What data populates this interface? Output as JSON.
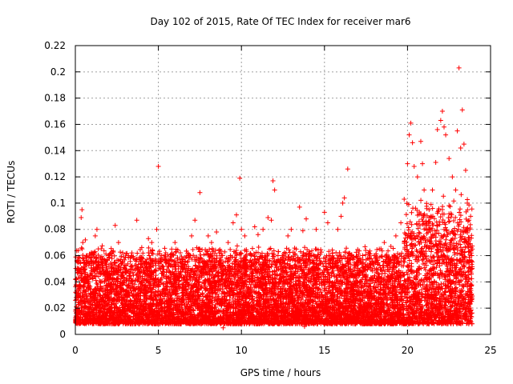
{
  "chart_data": {
    "type": "scatter",
    "title": "Day 102 of 2015, Rate Of TEC Index for receiver mar6",
    "xlabel": "GPS time / hours",
    "ylabel": "ROTI / TECUs",
    "xlim": [
      0,
      25
    ],
    "ylim": [
      0,
      0.22
    ],
    "xticks": [
      0,
      5,
      10,
      15,
      20,
      25
    ],
    "xtick_labels": [
      "0",
      "5",
      "10",
      "15",
      "20",
      "25"
    ],
    "yticks": [
      0,
      0.02,
      0.04,
      0.06,
      0.08,
      0.1,
      0.12,
      0.14,
      0.16,
      0.18,
      0.2,
      0.22
    ],
    "ytick_labels": [
      "0",
      "0.02",
      "0.04",
      "0.06",
      "0.08",
      "0.1",
      "0.12",
      "0.14",
      "0.16",
      "0.18",
      "0.2",
      "0.22"
    ],
    "grid": true,
    "marker": "+",
    "color": "#ff0000",
    "series": [
      {
        "name": "ROTI",
        "points": [
          [
            0.1,
            0.012
          ],
          [
            0.2,
            0.03
          ],
          [
            0.3,
            0.055
          ],
          [
            0.35,
            0.089
          ],
          [
            0.4,
            0.095
          ],
          [
            0.45,
            0.07
          ],
          [
            0.5,
            0.04
          ],
          [
            0.6,
            0.072
          ],
          [
            0.7,
            0.06
          ],
          [
            0.8,
            0.035
          ],
          [
            1.0,
            0.045
          ],
          [
            1.2,
            0.075
          ],
          [
            1.3,
            0.08
          ],
          [
            1.5,
            0.05
          ],
          [
            1.7,
            0.025
          ],
          [
            2.0,
            0.06
          ],
          [
            2.2,
            0.04
          ],
          [
            2.4,
            0.083
          ],
          [
            2.6,
            0.07
          ],
          [
            2.8,
            0.03
          ],
          [
            3.0,
            0.05
          ],
          [
            3.2,
            0.06
          ],
          [
            3.5,
            0.045
          ],
          [
            3.7,
            0.087
          ],
          [
            3.9,
            0.035
          ],
          [
            4.2,
            0.055
          ],
          [
            4.4,
            0.073
          ],
          [
            4.6,
            0.07
          ],
          [
            4.9,
            0.08
          ],
          [
            5.0,
            0.128
          ],
          [
            5.2,
            0.06
          ],
          [
            5.5,
            0.04
          ],
          [
            5.8,
            0.065
          ],
          [
            6.0,
            0.07
          ],
          [
            6.2,
            0.05
          ],
          [
            6.5,
            0.03
          ],
          [
            6.8,
            0.06
          ],
          [
            7.0,
            0.075
          ],
          [
            7.2,
            0.087
          ],
          [
            7.5,
            0.108
          ],
          [
            7.7,
            0.05
          ],
          [
            8.0,
            0.075
          ],
          [
            8.2,
            0.07
          ],
          [
            8.5,
            0.078
          ],
          [
            8.8,
            0.06
          ],
          [
            9.0,
            0.04
          ],
          [
            9.2,
            0.07
          ],
          [
            9.5,
            0.085
          ],
          [
            9.7,
            0.091
          ],
          [
            9.9,
            0.119
          ],
          [
            10.0,
            0.08
          ],
          [
            10.2,
            0.075
          ],
          [
            10.5,
            0.055
          ],
          [
            10.8,
            0.082
          ],
          [
            11.0,
            0.076
          ],
          [
            11.3,
            0.08
          ],
          [
            11.6,
            0.089
          ],
          [
            11.8,
            0.087
          ],
          [
            11.9,
            0.117
          ],
          [
            12.0,
            0.11
          ],
          [
            12.2,
            0.06
          ],
          [
            12.5,
            0.055
          ],
          [
            12.8,
            0.075
          ],
          [
            13.0,
            0.08
          ],
          [
            13.3,
            0.065
          ],
          [
            13.5,
            0.097
          ],
          [
            13.7,
            0.079
          ],
          [
            13.9,
            0.088
          ],
          [
            14.2,
            0.06
          ],
          [
            14.5,
            0.08
          ],
          [
            14.8,
            0.055
          ],
          [
            15.0,
            0.093
          ],
          [
            15.2,
            0.085
          ],
          [
            15.5,
            0.058
          ],
          [
            15.8,
            0.08
          ],
          [
            16.0,
            0.09
          ],
          [
            16.1,
            0.1
          ],
          [
            16.2,
            0.104
          ],
          [
            16.4,
            0.126
          ],
          [
            16.6,
            0.06
          ],
          [
            17.0,
            0.055
          ],
          [
            17.3,
            0.06
          ],
          [
            17.6,
            0.058
          ],
          [
            18.0,
            0.06
          ],
          [
            18.3,
            0.065
          ],
          [
            18.6,
            0.07
          ],
          [
            19.0,
            0.067
          ],
          [
            19.3,
            0.075
          ],
          [
            19.6,
            0.085
          ],
          [
            19.8,
            0.103
          ],
          [
            20.0,
            0.13
          ],
          [
            20.1,
            0.152
          ],
          [
            20.2,
            0.161
          ],
          [
            20.3,
            0.146
          ],
          [
            20.4,
            0.128
          ],
          [
            20.6,
            0.12
          ],
          [
            20.8,
            0.147
          ],
          [
            20.9,
            0.13
          ],
          [
            21.0,
            0.11
          ],
          [
            21.3,
            0.095
          ],
          [
            21.5,
            0.11
          ],
          [
            21.7,
            0.131
          ],
          [
            21.8,
            0.156
          ],
          [
            22.0,
            0.163
          ],
          [
            22.1,
            0.17
          ],
          [
            22.2,
            0.158
          ],
          [
            22.3,
            0.152
          ],
          [
            22.5,
            0.134
          ],
          [
            22.7,
            0.12
          ],
          [
            22.9,
            0.11
          ],
          [
            23.0,
            0.155
          ],
          [
            23.1,
            0.203
          ],
          [
            23.2,
            0.142
          ],
          [
            23.3,
            0.171
          ],
          [
            23.4,
            0.145
          ],
          [
            23.5,
            0.125
          ],
          [
            23.6,
            0.1
          ],
          [
            23.7,
            0.087
          ],
          [
            23.8,
            0.09
          ],
          [
            23.9,
            0.065
          ],
          [
            0.5,
            0.025
          ],
          [
            1.1,
            0.03
          ],
          [
            2.1,
            0.02
          ],
          [
            3.1,
            0.028
          ],
          [
            4.1,
            0.022
          ],
          [
            5.1,
            0.03
          ],
          [
            6.1,
            0.025
          ],
          [
            7.1,
            0.018
          ],
          [
            8.1,
            0.027
          ],
          [
            9.1,
            0.021
          ],
          [
            10.1,
            0.026
          ],
          [
            11.1,
            0.019
          ],
          [
            12.1,
            0.024
          ],
          [
            13.1,
            0.028
          ],
          [
            14.1,
            0.02
          ],
          [
            15.1,
            0.023
          ],
          [
            16.3,
            0.027
          ],
          [
            17.1,
            0.021
          ],
          [
            18.1,
            0.026
          ],
          [
            19.1,
            0.024
          ],
          [
            20.5,
            0.03
          ],
          [
            21.1,
            0.035
          ],
          [
            22.4,
            0.04
          ],
          [
            23.5,
            0.045
          ],
          [
            0.8,
            0.01
          ],
          [
            6.9,
            0.008
          ],
          [
            13.8,
            0.006
          ],
          [
            19.7,
            0.01
          ],
          [
            23.0,
            0.012
          ],
          [
            8.9,
            0.005
          ]
        ]
      }
    ]
  }
}
